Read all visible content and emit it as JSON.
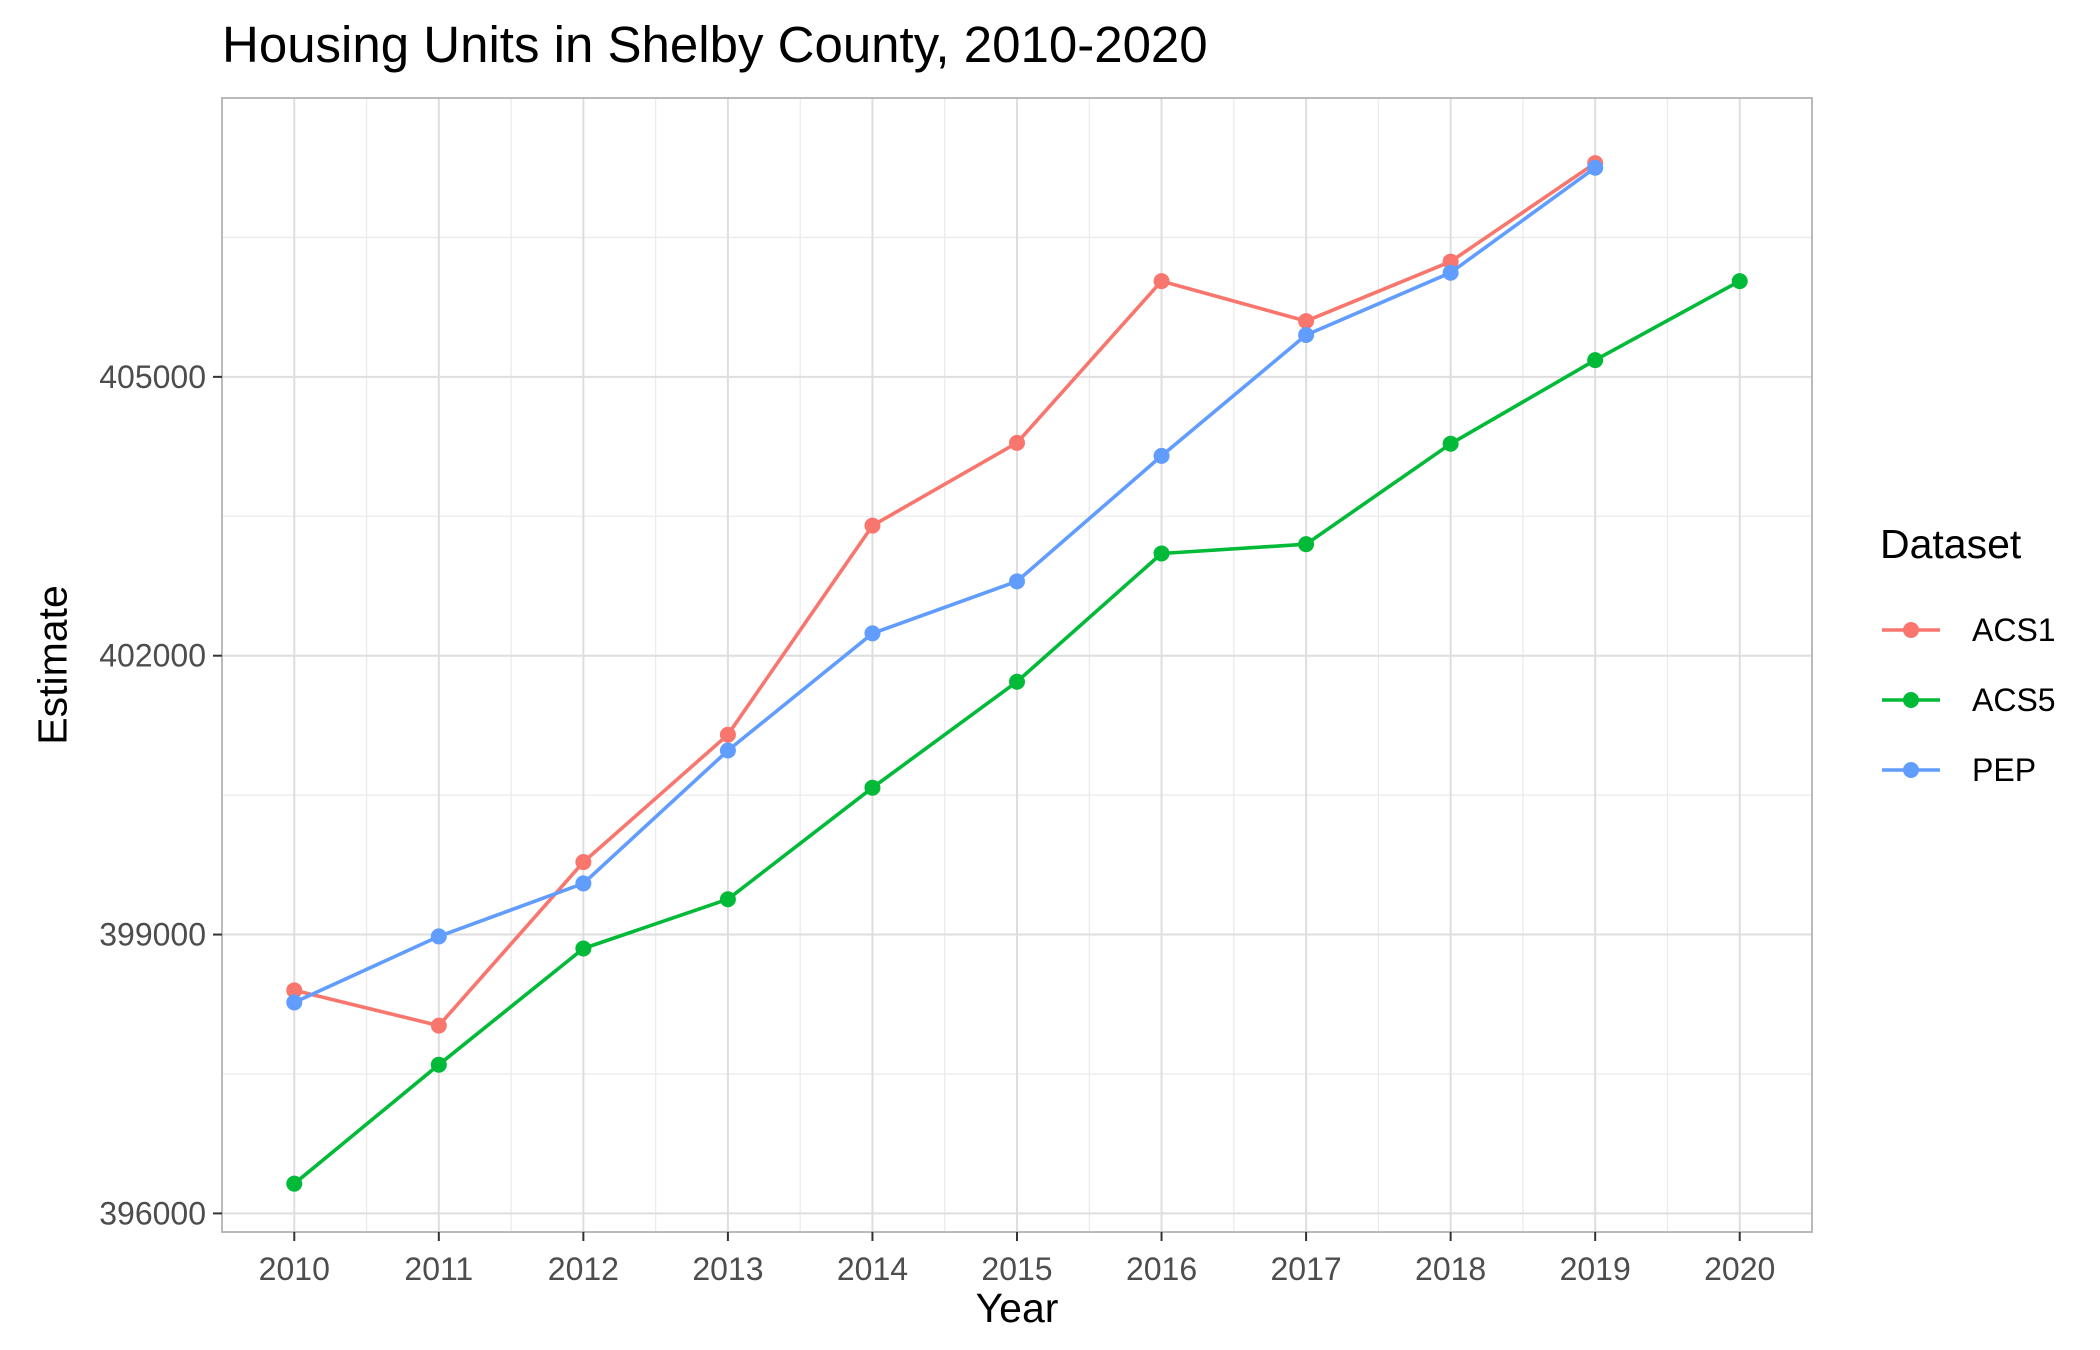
{
  "chart_data": {
    "type": "line",
    "title": "Housing Units in Shelby County, 2010-2020",
    "xlabel": "Year",
    "ylabel": "Estimate",
    "x": [
      2010,
      2011,
      2012,
      2013,
      2014,
      2015,
      2016,
      2017,
      2018,
      2019,
      2020
    ],
    "xlim": [
      2009.5,
      2020.5
    ],
    "ylim": [
      395800,
      408000
    ],
    "y_ticks": [
      396000,
      399000,
      402000,
      405000
    ],
    "grid": true,
    "legend": {
      "title": "Dataset",
      "position": "right"
    },
    "series": [
      {
        "name": "ACS1",
        "color": "#F8766D",
        "values": [
          398400,
          398020,
          399780,
          401150,
          403400,
          404290,
          406030,
          405600,
          406240,
          407300,
          null
        ]
      },
      {
        "name": "ACS5",
        "color": "#00BA38",
        "values": [
          396320,
          397600,
          398850,
          399380,
          400580,
          401720,
          403100,
          403200,
          404280,
          405180,
          406030
        ]
      },
      {
        "name": "PEP",
        "color": "#619CFF",
        "values": [
          398270,
          398980,
          399550,
          400980,
          402240,
          402800,
          404150,
          405450,
          406120,
          407250,
          null
        ]
      }
    ]
  }
}
